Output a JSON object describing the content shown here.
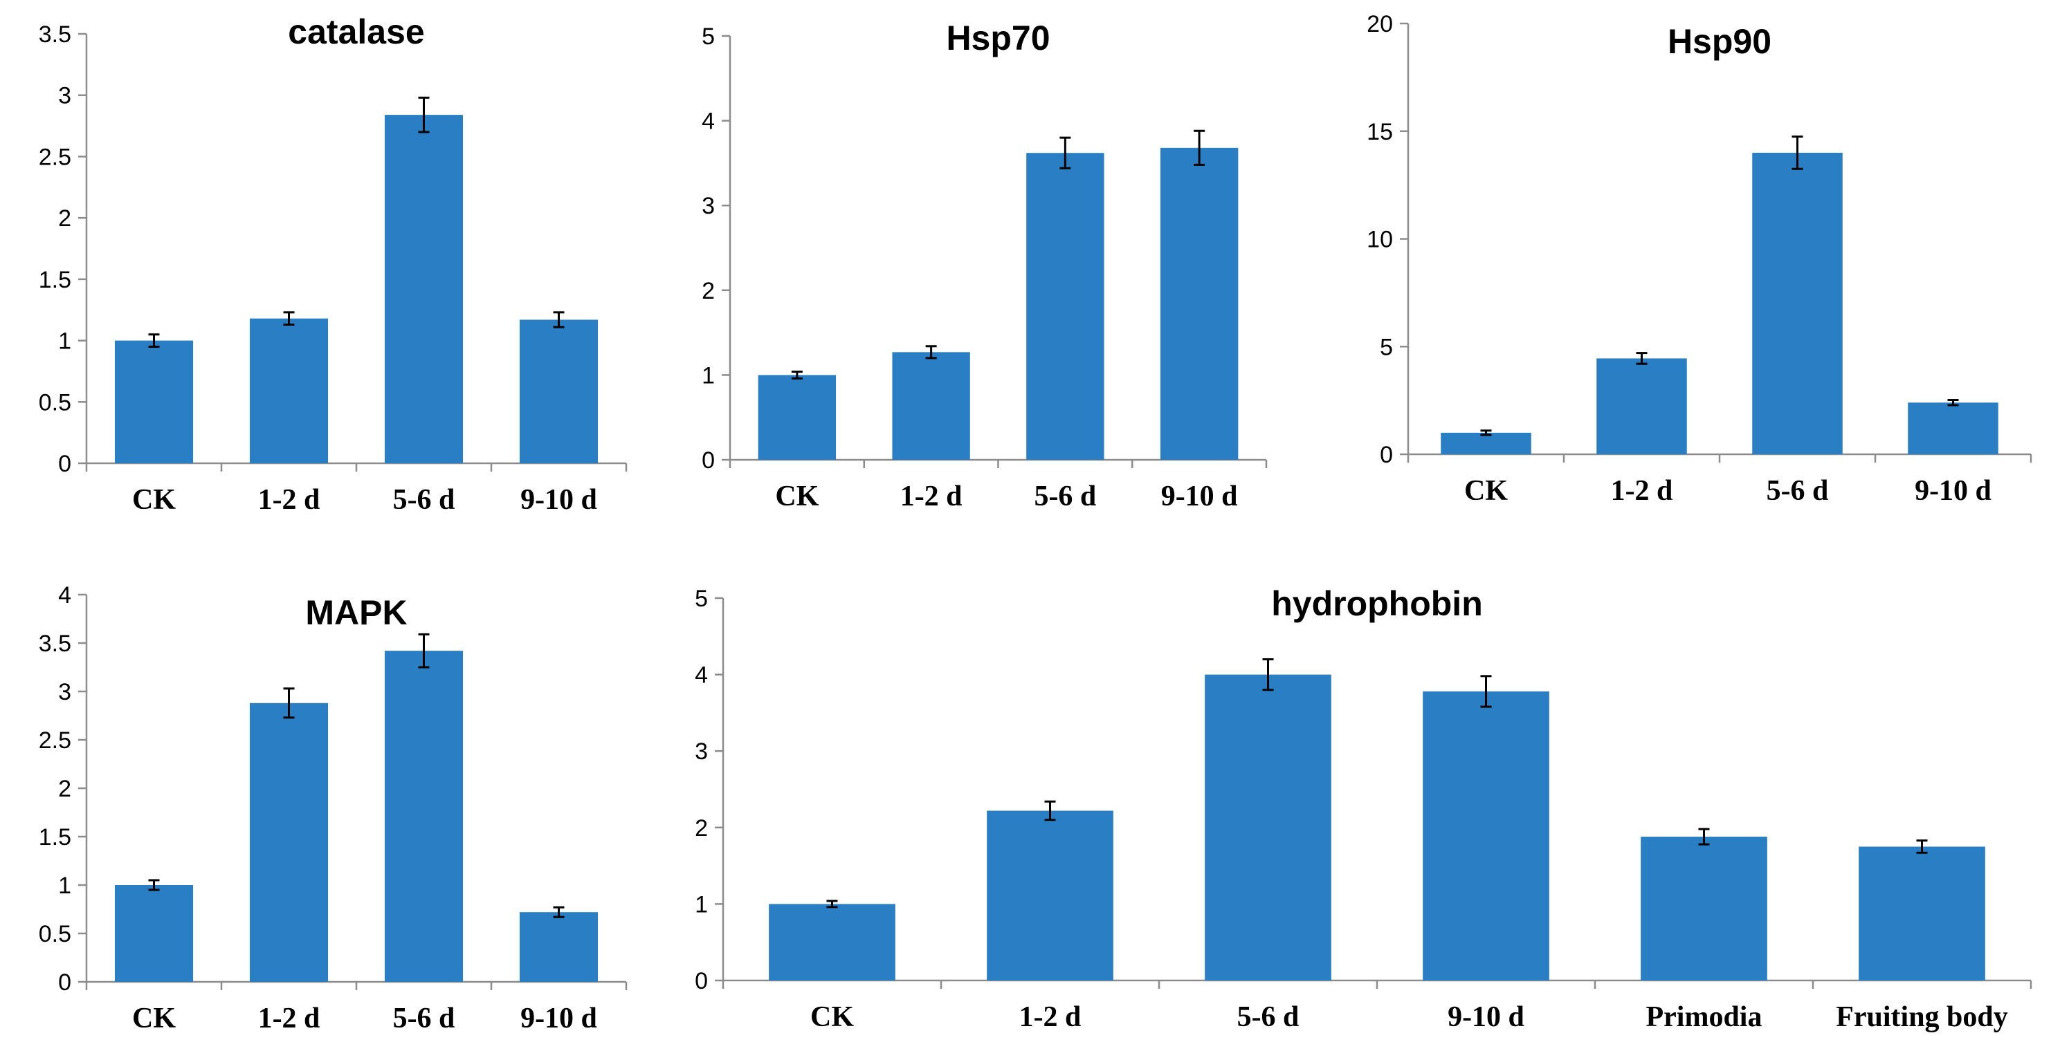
{
  "chart_data": [
    {
      "id": "catalase",
      "type": "bar",
      "title": "catalase",
      "categories": [
        "CK",
        "1-2 d",
        "5-6 d",
        "9-10 d"
      ],
      "values": [
        1.0,
        1.18,
        2.84,
        1.17
      ],
      "errors": [
        0.05,
        0.05,
        0.14,
        0.06
      ],
      "ylim": [
        0,
        3.5
      ],
      "yticks": [
        "0",
        "0.5",
        "1",
        "1.5",
        "2",
        "2.5",
        "3",
        "3.5"
      ],
      "xlabel": "",
      "ylabel": "",
      "grid": false,
      "series_color": "#2a7fc4"
    },
    {
      "id": "hsp70",
      "type": "bar",
      "title": "Hsp70",
      "categories": [
        "CK",
        "1-2 d",
        "5-6 d",
        "9-10 d"
      ],
      "values": [
        1.0,
        1.27,
        3.62,
        3.68
      ],
      "errors": [
        0.04,
        0.07,
        0.18,
        0.2
      ],
      "ylim": [
        0,
        5
      ],
      "yticks": [
        "0",
        "1",
        "2",
        "3",
        "4",
        "5"
      ],
      "xlabel": "",
      "ylabel": "",
      "grid": false,
      "series_color": "#2a7fc4"
    },
    {
      "id": "hsp90",
      "type": "bar",
      "title": "Hsp90",
      "categories": [
        "CK",
        "1-2 d",
        "5-6 d",
        "9-10 d"
      ],
      "values": [
        1.0,
        4.45,
        14.0,
        2.4
      ],
      "errors": [
        0.1,
        0.25,
        0.75,
        0.12
      ],
      "ylim": [
        0,
        20
      ],
      "yticks": [
        "0",
        "5",
        "10",
        "15",
        "20"
      ],
      "xlabel": "",
      "ylabel": "",
      "grid": false,
      "series_color": "#2a7fc4"
    },
    {
      "id": "mapk",
      "type": "bar",
      "title": "MAPK",
      "categories": [
        "CK",
        "1-2 d",
        "5-6 d",
        "9-10 d"
      ],
      "values": [
        1.0,
        2.88,
        3.42,
        0.72
      ],
      "errors": [
        0.05,
        0.15,
        0.17,
        0.05
      ],
      "ylim": [
        0,
        4
      ],
      "yticks": [
        "0",
        "0.5",
        "1",
        "1.5",
        "2",
        "2.5",
        "3",
        "3.5",
        "4"
      ],
      "xlabel": "",
      "ylabel": "",
      "grid": false,
      "series_color": "#2a7fc4"
    },
    {
      "id": "hydrophobin",
      "type": "bar",
      "title": "hydrophobin",
      "categories": [
        "CK",
        "1-2 d",
        "5-6 d",
        "9-10 d",
        "Primodia",
        "Fruiting body"
      ],
      "values": [
        1.0,
        2.22,
        4.0,
        3.78,
        1.88,
        1.75
      ],
      "errors": [
        0.04,
        0.12,
        0.2,
        0.2,
        0.1,
        0.08
      ],
      "ylim": [
        0,
        5
      ],
      "yticks": [
        "0",
        "1",
        "2",
        "3",
        "4",
        "5"
      ],
      "xlabel": "",
      "ylabel": "",
      "grid": false,
      "series_color": "#2a7fc4"
    }
  ]
}
